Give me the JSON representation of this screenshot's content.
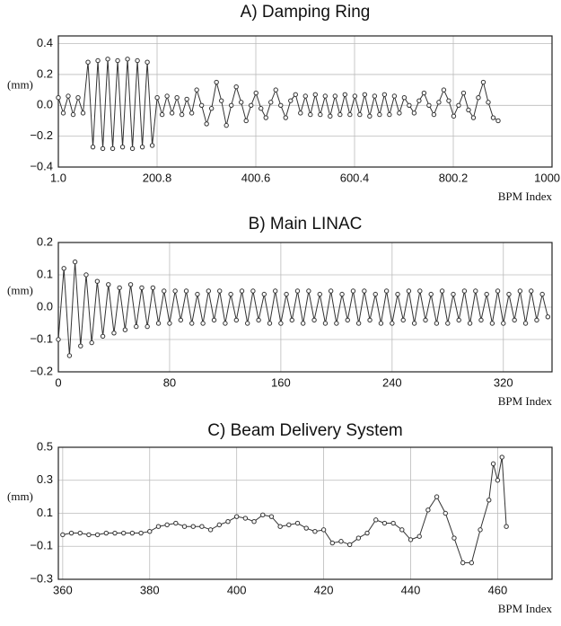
{
  "chart_data": [
    {
      "type": "line",
      "title": "A)  Damping Ring",
      "ylabel": "(mm)",
      "xlabel": "BPM Index",
      "color": "#333333",
      "grid": true,
      "xlim": [
        1,
        1000
      ],
      "ylim": [
        -0.4,
        0.45
      ],
      "xticks": [
        {
          "value": 1,
          "label": "1.0"
        },
        200.8,
        400.6,
        600.4,
        800.2,
        {
          "value": 1000,
          "label": "1000.0"
        }
      ],
      "yticks": [
        {
          "value": -0.4,
          "label": "−0.4"
        },
        {
          "value": -0.2,
          "label": "−0.2"
        },
        {
          "value": 0,
          "label": "0.0"
        },
        0.2,
        0.4
      ],
      "x": [
        1,
        11,
        21,
        31,
        41,
        51,
        61,
        71,
        81,
        91,
        101,
        111,
        121,
        131,
        141,
        151,
        161,
        171,
        181,
        191,
        201,
        211,
        221,
        231,
        241,
        251,
        261,
        271,
        281,
        291,
        301,
        311,
        321,
        331,
        341,
        351,
        361,
        371,
        381,
        391,
        401,
        411,
        421,
        431,
        441,
        451,
        461,
        471,
        481,
        491,
        501,
        511,
        521,
        531,
        541,
        551,
        561,
        571,
        581,
        591,
        601,
        611,
        621,
        631,
        641,
        651,
        661,
        671,
        681,
        691,
        701,
        711,
        721,
        731,
        741,
        751,
        761,
        771,
        781,
        791,
        801,
        811,
        821,
        831,
        841,
        851,
        861,
        871,
        881,
        891
      ],
      "values": [
        0.05,
        -0.05,
        0.06,
        -0.06,
        0.05,
        -0.05,
        0.28,
        -0.27,
        0.29,
        -0.28,
        0.3,
        -0.28,
        0.29,
        -0.27,
        0.3,
        -0.28,
        0.29,
        -0.27,
        0.28,
        -0.26,
        0.05,
        -0.06,
        0.06,
        -0.05,
        0.05,
        -0.06,
        0.04,
        -0.05,
        0.1,
        0.0,
        -0.12,
        -0.02,
        0.15,
        0.03,
        -0.13,
        0.0,
        0.12,
        0.02,
        -0.1,
        0.0,
        0.08,
        -0.02,
        -0.08,
        0.02,
        0.1,
        0.0,
        -0.08,
        0.03,
        0.07,
        -0.05,
        0.06,
        -0.06,
        0.07,
        -0.06,
        0.06,
        -0.07,
        0.06,
        -0.06,
        0.07,
        -0.06,
        0.06,
        -0.06,
        0.07,
        -0.07,
        0.06,
        -0.06,
        0.07,
        -0.06,
        0.06,
        -0.05,
        0.05,
        0.0,
        -0.05,
        0.03,
        0.08,
        0.0,
        -0.06,
        0.02,
        0.1,
        0.03,
        -0.07,
        0.0,
        0.08,
        -0.03,
        -0.08,
        0.05,
        0.15,
        0.02,
        -0.08,
        -0.1
      ]
    },
    {
      "type": "line",
      "title": "B) Main LINAC",
      "ylabel": "(mm)",
      "xlabel": "BPM Index",
      "color": "#333333",
      "grid": true,
      "xlim": [
        0,
        355
      ],
      "ylim": [
        -0.2,
        0.2
      ],
      "xticks": [
        0,
        80,
        160,
        240,
        320
      ],
      "yticks": [
        {
          "value": -0.2,
          "label": "−0.2"
        },
        {
          "value": -0.1,
          "label": "−0.1"
        },
        {
          "value": 0,
          "label": "0.0"
        },
        0.1,
        0.2
      ],
      "x": [
        0,
        4,
        8,
        12,
        16,
        20,
        24,
        28,
        32,
        36,
        40,
        44,
        48,
        52,
        56,
        60,
        64,
        68,
        72,
        76,
        80,
        84,
        88,
        92,
        96,
        100,
        104,
        108,
        112,
        116,
        120,
        124,
        128,
        132,
        136,
        140,
        144,
        148,
        152,
        156,
        160,
        164,
        168,
        172,
        176,
        180,
        184,
        188,
        192,
        196,
        200,
        204,
        208,
        212,
        216,
        220,
        224,
        228,
        232,
        236,
        240,
        244,
        248,
        252,
        256,
        260,
        264,
        268,
        272,
        276,
        280,
        284,
        288,
        292,
        296,
        300,
        304,
        308,
        312,
        316,
        320,
        324,
        328,
        332,
        336,
        340,
        344,
        348,
        352
      ],
      "values": [
        -0.1,
        0.12,
        -0.15,
        0.14,
        -0.12,
        0.1,
        -0.11,
        0.08,
        -0.09,
        0.07,
        -0.08,
        0.06,
        -0.07,
        0.07,
        -0.06,
        0.06,
        -0.06,
        0.06,
        -0.05,
        0.05,
        -0.05,
        0.05,
        -0.04,
        0.05,
        -0.05,
        0.04,
        -0.05,
        0.05,
        -0.04,
        0.05,
        -0.05,
        0.04,
        -0.04,
        0.05,
        -0.05,
        0.05,
        -0.04,
        0.04,
        -0.05,
        0.05,
        -0.05,
        0.04,
        -0.04,
        0.05,
        -0.05,
        0.05,
        -0.04,
        0.04,
        -0.05,
        0.05,
        -0.05,
        0.04,
        -0.04,
        0.05,
        -0.05,
        0.05,
        -0.04,
        0.04,
        -0.05,
        0.05,
        -0.05,
        0.04,
        -0.04,
        0.05,
        -0.05,
        0.05,
        -0.04,
        0.04,
        -0.05,
        0.05,
        -0.05,
        0.04,
        -0.04,
        0.05,
        -0.05,
        0.05,
        -0.04,
        0.04,
        -0.05,
        0.05,
        -0.05,
        0.04,
        -0.04,
        0.05,
        -0.05,
        0.05,
        -0.04,
        0.04,
        -0.03
      ]
    },
    {
      "type": "line",
      "title": "C) Beam Delivery System",
      "ylabel": "(mm)",
      "xlabel": "BPM Index",
      "color": "#333333",
      "grid": true,
      "xlim": [
        359,
        472.5
      ],
      "ylim": [
        -0.3,
        0.5
      ],
      "xticks": [
        360,
        380,
        400,
        420,
        440,
        460
      ],
      "yticks": [
        {
          "value": -0.3,
          "label": "−0.3"
        },
        {
          "value": -0.1,
          "label": "−0.1"
        },
        0.1,
        0.3,
        0.5
      ],
      "x": [
        360,
        362,
        364,
        366,
        368,
        370,
        372,
        374,
        376,
        378,
        380,
        382,
        384,
        386,
        388,
        390,
        392,
        394,
        396,
        398,
        400,
        402,
        404,
        406,
        408,
        410,
        412,
        414,
        416,
        418,
        420,
        422,
        424,
        426,
        428,
        430,
        432,
        434,
        436,
        438,
        440,
        442,
        444,
        446,
        448,
        450,
        452,
        454,
        456,
        458,
        459,
        460,
        461,
        462
      ],
      "values": [
        -0.03,
        -0.02,
        -0.02,
        -0.03,
        -0.03,
        -0.02,
        -0.02,
        -0.02,
        -0.02,
        -0.02,
        -0.01,
        0.02,
        0.03,
        0.04,
        0.02,
        0.02,
        0.02,
        0.0,
        0.03,
        0.05,
        0.08,
        0.07,
        0.05,
        0.09,
        0.08,
        0.02,
        0.03,
        0.04,
        0.01,
        -0.01,
        0.0,
        -0.08,
        -0.07,
        -0.09,
        -0.05,
        -0.02,
        0.06,
        0.04,
        0.04,
        0.0,
        -0.06,
        -0.04,
        0.12,
        0.2,
        0.1,
        -0.05,
        -0.2,
        -0.2,
        0.0,
        0.18,
        0.4,
        0.3,
        0.44,
        0.02
      ]
    }
  ]
}
